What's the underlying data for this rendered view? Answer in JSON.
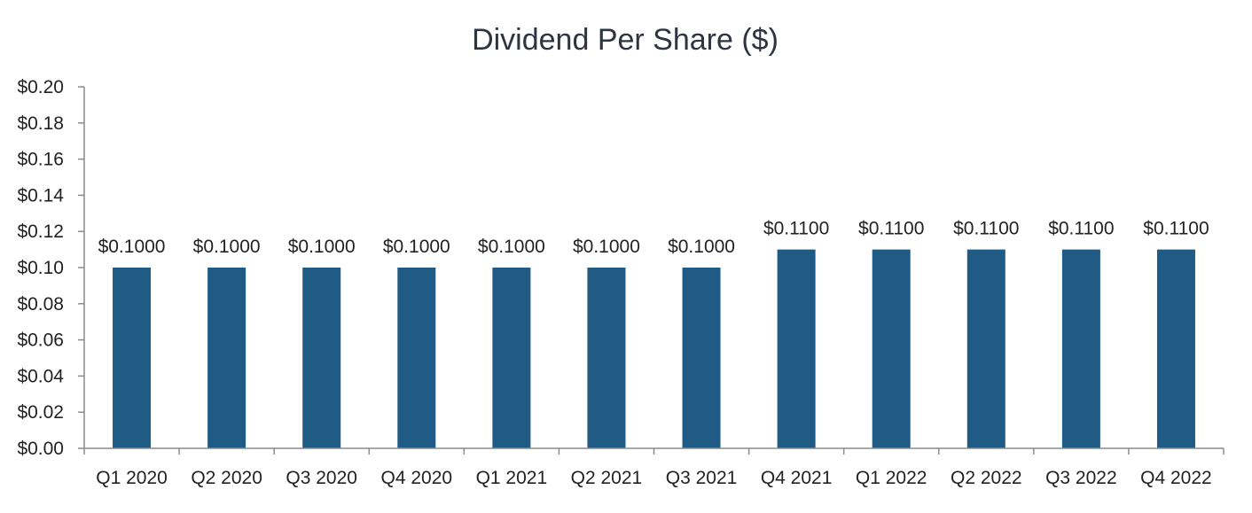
{
  "chart_data": {
    "type": "bar",
    "title": "Dividend Per Share ($)",
    "categories": [
      "Q1 2020",
      "Q2 2020",
      "Q3 2020",
      "Q4 2020",
      "Q1 2021",
      "Q2 2021",
      "Q3 2021",
      "Q4 2021",
      "Q1 2022",
      "Q2 2022",
      "Q3 2022",
      "Q4 2022"
    ],
    "values": [
      0.1,
      0.1,
      0.1,
      0.1,
      0.1,
      0.1,
      0.1,
      0.11,
      0.11,
      0.11,
      0.11,
      0.11
    ],
    "data_labels": [
      "$0.1000",
      "$0.1000",
      "$0.1000",
      "$0.1000",
      "$0.1000",
      "$0.1000",
      "$0.1000",
      "$0.1100",
      "$0.1100",
      "$0.1100",
      "$0.1100",
      "$0.1100"
    ],
    "ylim": [
      0,
      0.2
    ],
    "yticks": [
      0,
      0.02,
      0.04,
      0.06,
      0.08,
      0.1,
      0.12,
      0.14,
      0.16,
      0.18,
      0.2
    ],
    "ytick_labels": [
      "$0.00",
      "$0.02",
      "$0.04",
      "$0.06",
      "$0.08",
      "$0.10",
      "$0.12",
      "$0.14",
      "$0.16",
      "$0.18",
      "$0.20"
    ],
    "xlabel": "",
    "ylabel": "",
    "grid": false,
    "legend": "none",
    "bar_color": "#1f5b85"
  }
}
